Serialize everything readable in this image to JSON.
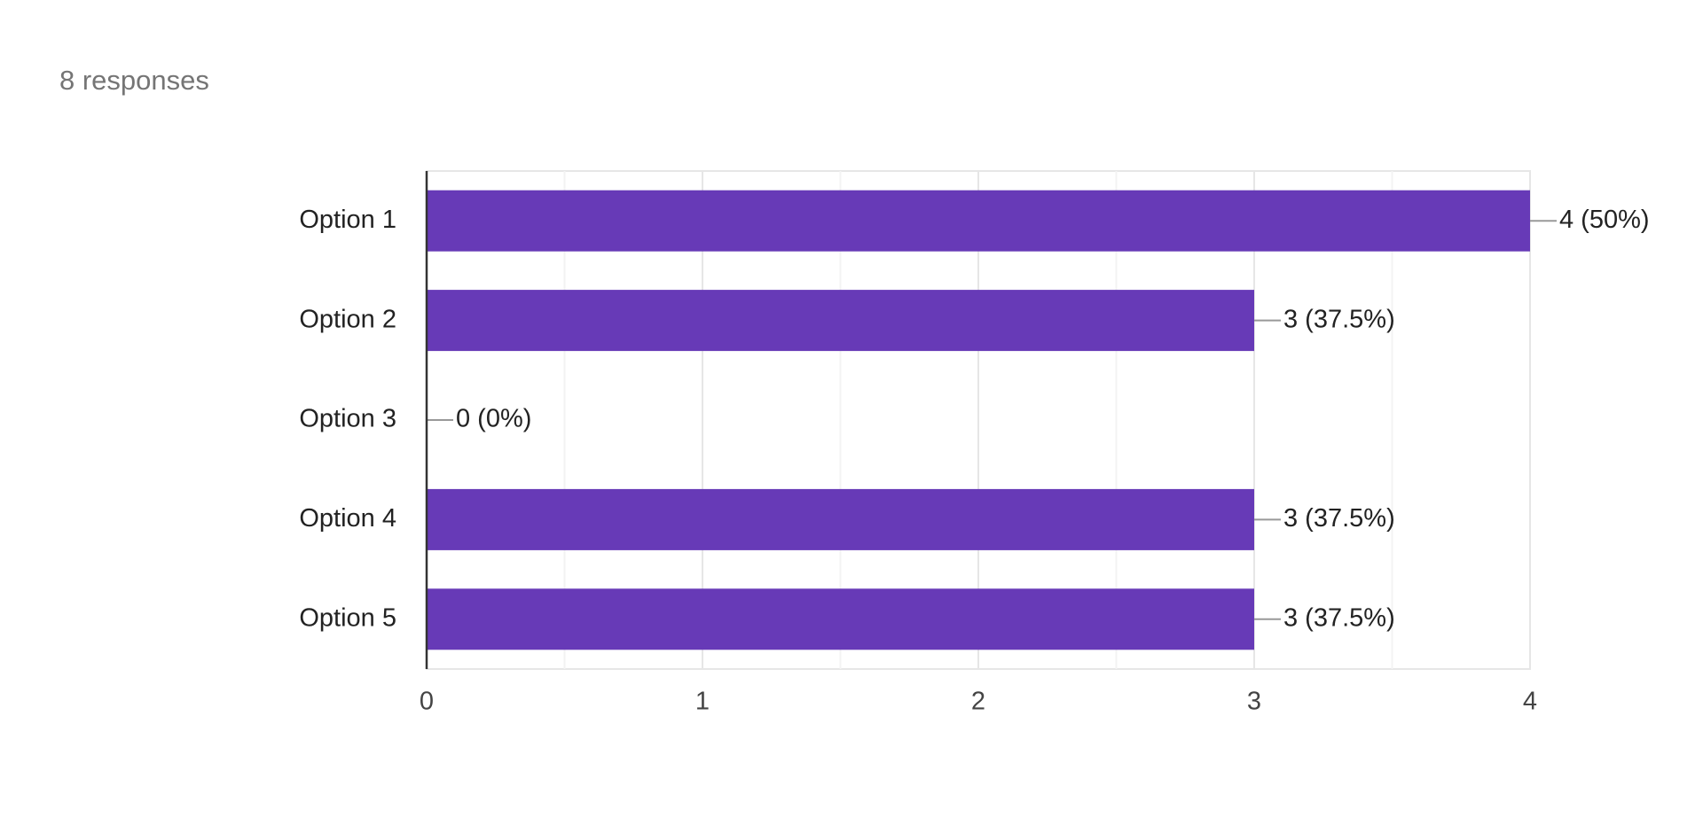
{
  "chart_data": {
    "type": "bar",
    "orientation": "horizontal",
    "title": "8 responses",
    "categories": [
      "Option 1",
      "Option 2",
      "Option 3",
      "Option 4",
      "Option 5"
    ],
    "values": [
      4,
      3,
      0,
      3,
      3
    ],
    "value_labels": [
      "4 (50%)",
      "3 (37.5%)",
      "0 (0%)",
      "3 (37.5%)",
      "3 (37.5%)"
    ],
    "color": "#673ab7",
    "xlim": [
      0,
      4
    ],
    "xticks": [
      0,
      1,
      2,
      3,
      4
    ],
    "minor_xticks": [
      0.5,
      1.5,
      2.5,
      3.5
    ],
    "grid": true
  }
}
